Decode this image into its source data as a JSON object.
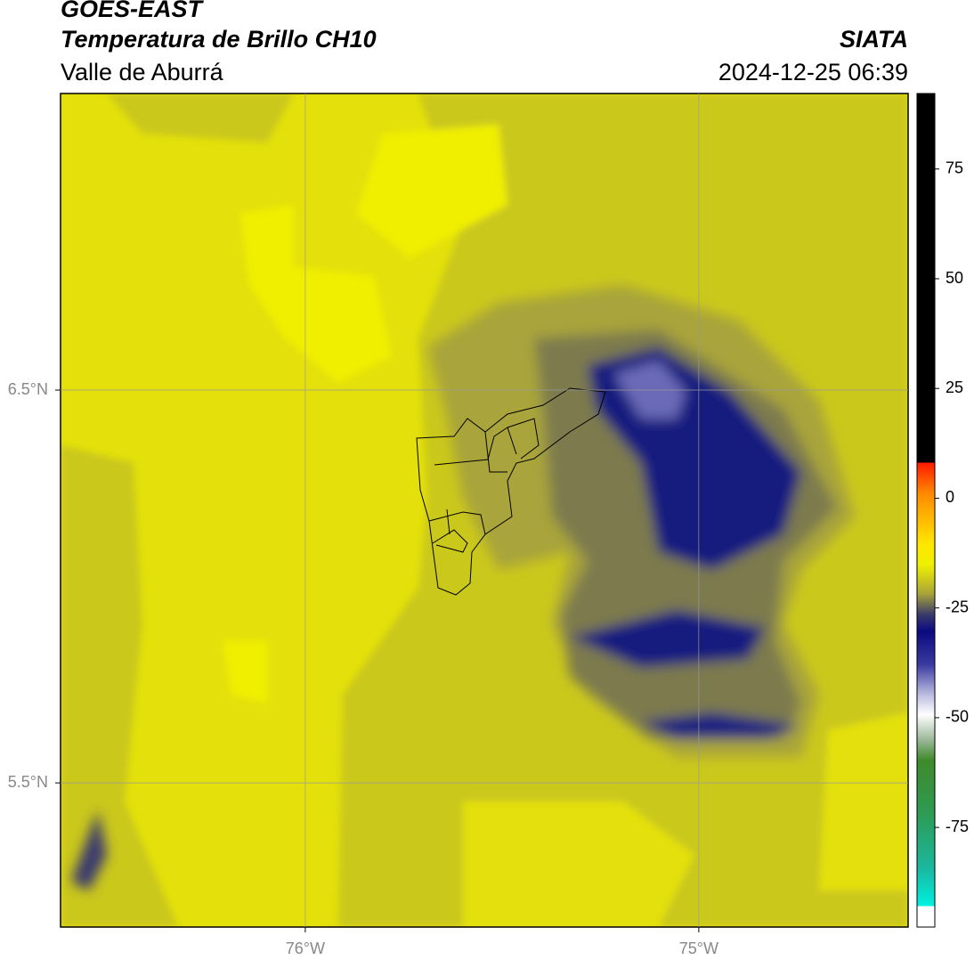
{
  "header": {
    "title": "GOES-EAST",
    "subtitle": "Temperatura de Brillo CH10",
    "region": "Valle de Aburrá",
    "source": "SIATA",
    "timestamp": "2024-12-25 06:39"
  },
  "map": {
    "lonlim": [
      -76.622,
      -74.468
    ],
    "latlim": [
      5.133,
      7.255
    ],
    "lonticks": [
      {
        "value": -76,
        "label": "76°W"
      },
      {
        "value": -75,
        "label": "75°W"
      }
    ],
    "latticks": [
      {
        "value": 6.5,
        "label": "6.5°N"
      },
      {
        "value": 5.5,
        "label": "5.5°N"
      }
    ],
    "grid": true
  },
  "colorbar": {
    "lim": [
      -97.7,
      92.2
    ],
    "ticks": [
      75,
      50,
      25,
      0,
      -25,
      -50,
      -75
    ]
  }
}
